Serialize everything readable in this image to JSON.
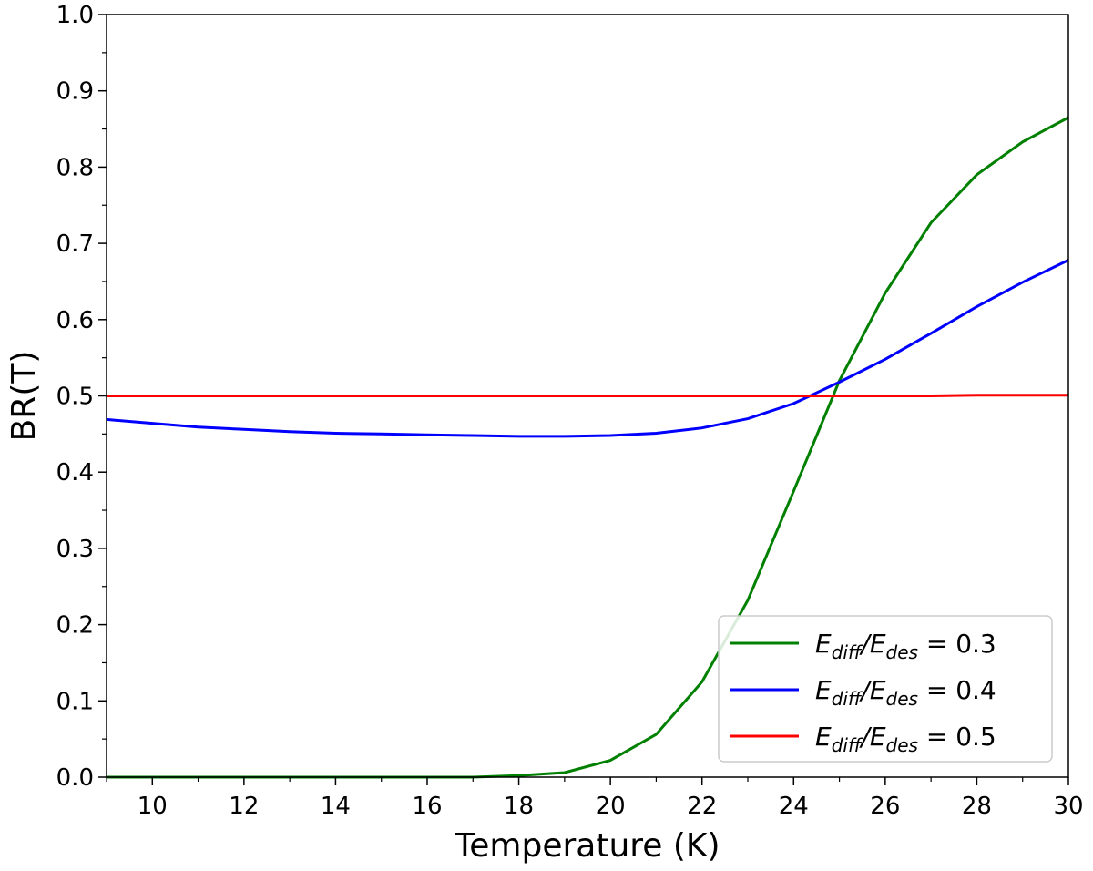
{
  "chart_data": {
    "type": "line",
    "xlabel": "Temperature (K)",
    "ylabel": "BR(T)",
    "xlim": [
      9,
      30
    ],
    "ylim": [
      0.0,
      1.0
    ],
    "xticks": [
      "10",
      "12",
      "14",
      "16",
      "18",
      "20",
      "22",
      "24",
      "26",
      "28",
      "30"
    ],
    "yticks": [
      "0.0",
      "0.1",
      "0.2",
      "0.3",
      "0.4",
      "0.5",
      "0.6",
      "0.7",
      "0.8",
      "0.9",
      "1.0"
    ],
    "grid": false,
    "legend_position": "lower-right",
    "x": [
      9,
      10,
      11,
      12,
      13,
      14,
      15,
      16,
      17,
      18,
      19,
      20,
      21,
      22,
      23,
      24,
      25,
      26,
      27,
      28,
      29,
      30
    ],
    "series": [
      {
        "legend": {
          "main": "E",
          "sub1": "diff",
          "slash": "/E",
          "sub2": "des",
          "eq": " = 0.3"
        },
        "color": "#008000",
        "values": [
          0.0,
          0.0,
          0.0,
          0.0,
          0.0,
          0.0,
          0.0,
          0.0,
          0.0,
          0.002,
          0.006,
          0.022,
          0.056,
          0.125,
          0.232,
          0.375,
          0.52,
          0.635,
          0.727,
          0.79,
          0.833,
          0.865
        ]
      },
      {
        "legend": {
          "main": "E",
          "sub1": "diff",
          "slash": "/E",
          "sub2": "des",
          "eq": " = 0.4"
        },
        "color": "#0000ff",
        "values": [
          0.469,
          0.464,
          0.459,
          0.456,
          0.453,
          0.451,
          0.45,
          0.449,
          0.448,
          0.447,
          0.447,
          0.448,
          0.451,
          0.458,
          0.47,
          0.49,
          0.518,
          0.548,
          0.582,
          0.617,
          0.649,
          0.678
        ]
      },
      {
        "legend": {
          "main": "E",
          "sub1": "diff",
          "slash": "/E",
          "sub2": "des",
          "eq": " = 0.5"
        },
        "color": "#ff0000",
        "values": [
          0.5,
          0.5,
          0.5,
          0.5,
          0.5,
          0.5,
          0.5,
          0.5,
          0.5,
          0.5,
          0.5,
          0.5,
          0.5,
          0.5,
          0.5,
          0.5,
          0.5,
          0.5,
          0.5,
          0.501,
          0.501,
          0.501
        ]
      }
    ]
  }
}
